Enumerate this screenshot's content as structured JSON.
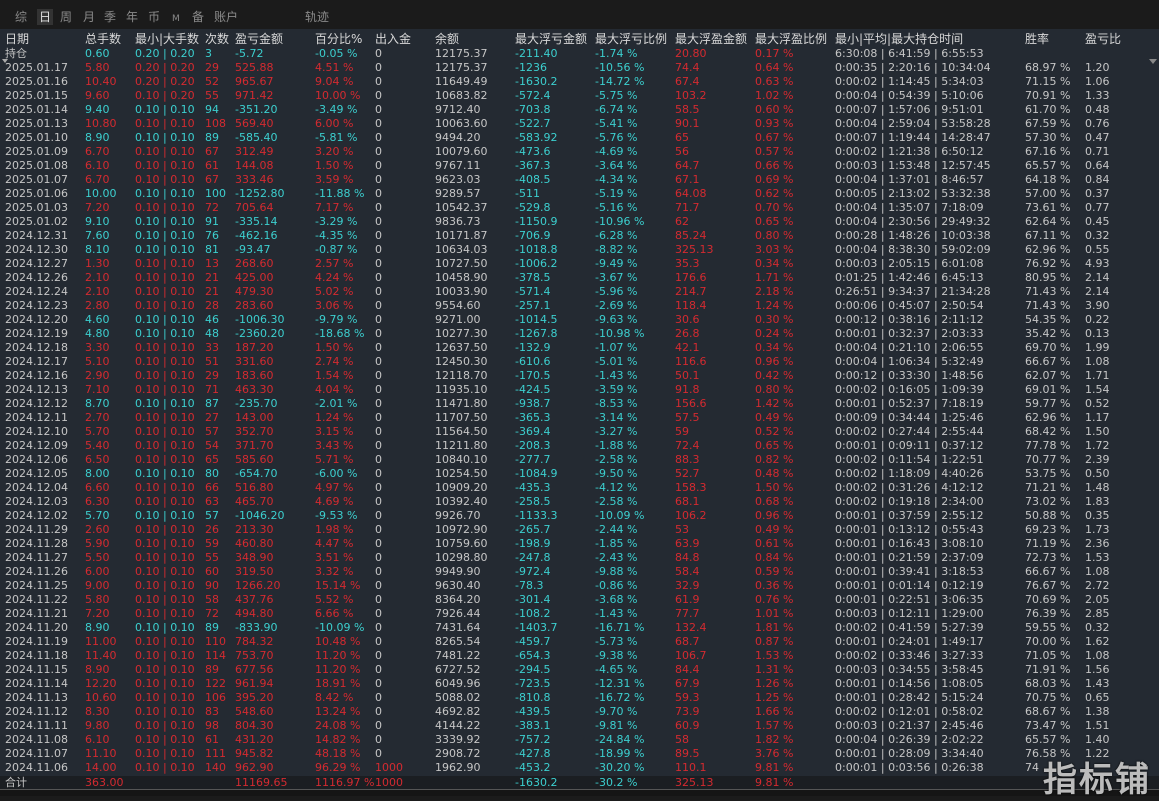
{
  "tabs": [
    {
      "label": "综",
      "active": false
    },
    {
      "label": "日",
      "active": true
    },
    {
      "label": "周",
      "active": false
    },
    {
      "label": "月",
      "active": false
    },
    {
      "label": "季",
      "active": false
    },
    {
      "label": "年",
      "active": false
    },
    {
      "label": "币",
      "active": false
    },
    {
      "label": "M",
      "active": false
    },
    {
      "label": "备",
      "active": false
    },
    {
      "label": "账户",
      "active": false
    },
    {
      "label": "轨迹",
      "active": false
    }
  ],
  "colors": {
    "positive": "#d42a30",
    "negative": "#3ccfcf",
    "neutral": "#c6c6c6",
    "background": "#242a32"
  },
  "columns": [
    "日期",
    "总手数",
    "最小|大手数",
    "次数",
    "盈亏金额",
    "百分比%",
    "出入金",
    "余额",
    "最大浮亏金额",
    "最大浮亏比例",
    "最大浮盈金额",
    "最大浮盈比例",
    "最小|平均|最大持仓时间",
    "胜率",
    "盈亏比"
  ],
  "position_row": [
    "持仓",
    "0.60",
    "0.20 | 0.20",
    "3",
    "-5.72",
    "-0.05 %",
    "0",
    "12175.37",
    "-211.40",
    "-1.74 %",
    "20.80",
    "0.17 %",
    "6:30:08 | 6:41:59 | 6:55:53",
    "",
    ""
  ],
  "rows": [
    [
      "2025.01.17",
      "5.80",
      "0.20 | 0.20",
      "29",
      "525.88",
      "4.51 %",
      "0",
      "12175.37",
      "-1236",
      "-10.56 %",
      "74.4",
      "0.64 %",
      "0:00:35 | 2:20:16 | 10:34:04",
      "68.97 %",
      "1.20"
    ],
    [
      "2025.01.16",
      "10.40",
      "0.20 | 0.20",
      "52",
      "965.67",
      "9.04 %",
      "0",
      "11649.49",
      "-1630.2",
      "-14.72 %",
      "67.4",
      "0.63 %",
      "0:00:02 | 1:14:45 | 5:34:03",
      "71.15 %",
      "1.06"
    ],
    [
      "2025.01.15",
      "9.60",
      "0.10 | 0.20",
      "55",
      "971.42",
      "10.00 %",
      "0",
      "10683.82",
      "-572.4",
      "-5.75 %",
      "103.2",
      "1.02 %",
      "0:00:04 | 0:54:39 | 5:10:06",
      "70.91 %",
      "1.33"
    ],
    [
      "2025.01.14",
      "9.40",
      "0.10 | 0.10",
      "94",
      "-351.20",
      "-3.49 %",
      "0",
      "9712.40",
      "-703.8",
      "-6.74 %",
      "58.5",
      "0.60 %",
      "0:00:07 | 1:57:06 | 9:51:01",
      "61.70 %",
      "0.48"
    ],
    [
      "2025.01.13",
      "10.80",
      "0.10 | 0.10",
      "108",
      "569.40",
      "6.00 %",
      "0",
      "10063.60",
      "-522.7",
      "-5.41 %",
      "90.1",
      "0.93 %",
      "0:00:04 | 2:59:04 | 53:58:28",
      "67.59 %",
      "0.76"
    ],
    [
      "2025.01.10",
      "8.90",
      "0.10 | 0.10",
      "89",
      "-585.40",
      "-5.81 %",
      "0",
      "9494.20",
      "-583.92",
      "-5.76 %",
      "65",
      "0.67 %",
      "0:00:07 | 1:19:44 | 14:28:47",
      "57.30 %",
      "0.47"
    ],
    [
      "2025.01.09",
      "6.70",
      "0.10 | 0.10",
      "67",
      "312.49",
      "3.20 %",
      "0",
      "10079.60",
      "-473.6",
      "-4.69 %",
      "56",
      "0.57 %",
      "0:00:02 | 1:21:38 | 6:50:12",
      "67.16 %",
      "0.71"
    ],
    [
      "2025.01.08",
      "6.10",
      "0.10 | 0.10",
      "61",
      "144.08",
      "1.50 %",
      "0",
      "9767.11",
      "-367.3",
      "-3.64 %",
      "64.7",
      "0.66 %",
      "0:00:03 | 1:53:48 | 12:57:45",
      "65.57 %",
      "0.64"
    ],
    [
      "2025.01.07",
      "6.70",
      "0.10 | 0.10",
      "67",
      "333.46",
      "3.59 %",
      "0",
      "9623.03",
      "-408.5",
      "-4.34 %",
      "67.1",
      "0.69 %",
      "0:00:04 | 1:37:01 | 8:46:57",
      "64.18 %",
      "0.84"
    ],
    [
      "2025.01.06",
      "10.00",
      "0.10 | 0.10",
      "100",
      "-1252.80",
      "-11.88 %",
      "0",
      "9289.57",
      "-511",
      "-5.19 %",
      "64.08",
      "0.62 %",
      "0:00:05 | 2:13:02 | 53:32:38",
      "57.00 %",
      "0.37"
    ],
    [
      "2025.01.03",
      "7.20",
      "0.10 | 0.10",
      "72",
      "705.64",
      "7.17 %",
      "0",
      "10542.37",
      "-529.8",
      "-5.16 %",
      "71.7",
      "0.70 %",
      "0:00:04 | 1:35:07 | 7:18:09",
      "73.61 %",
      "0.77"
    ],
    [
      "2025.01.02",
      "9.10",
      "0.10 | 0.10",
      "91",
      "-335.14",
      "-3.29 %",
      "0",
      "9836.73",
      "-1150.9",
      "-10.96 %",
      "62",
      "0.65 %",
      "0:00:04 | 2:30:56 | 29:49:32",
      "62.64 %",
      "0.45"
    ],
    [
      "2024.12.31",
      "7.60",
      "0.10 | 0.10",
      "76",
      "-462.16",
      "-4.35 %",
      "0",
      "10171.87",
      "-706.9",
      "-6.28 %",
      "85.24",
      "0.80 %",
      "0:00:28 | 1:48:26 | 10:03:38",
      "67.11 %",
      "0.32"
    ],
    [
      "2024.12.30",
      "8.10",
      "0.10 | 0.10",
      "81",
      "-93.47",
      "-0.87 %",
      "0",
      "10634.03",
      "-1018.8",
      "-8.82 %",
      "325.13",
      "3.03 %",
      "0:00:04 | 8:38:30 | 59:02:09",
      "62.96 %",
      "0.55"
    ],
    [
      "2024.12.27",
      "1.30",
      "0.10 | 0.10",
      "13",
      "268.60",
      "2.57 %",
      "0",
      "10727.50",
      "-1006.2",
      "-9.49 %",
      "35.3",
      "0.34 %",
      "0:00:03 | 2:05:15 | 6:01:08",
      "76.92 %",
      "4.93"
    ],
    [
      "2024.12.26",
      "2.10",
      "0.10 | 0.10",
      "21",
      "425.00",
      "4.24 %",
      "0",
      "10458.90",
      "-378.5",
      "-3.67 %",
      "176.6",
      "1.71 %",
      "0:01:25 | 1:42:46 | 6:45:13",
      "80.95 %",
      "2.14"
    ],
    [
      "2024.12.24",
      "2.10",
      "0.10 | 0.10",
      "21",
      "479.30",
      "5.02 %",
      "0",
      "10033.90",
      "-571.4",
      "-5.96 %",
      "214.7",
      "2.18 %",
      "0:26:51 | 9:34:37 | 21:34:28",
      "71.43 %",
      "2.14"
    ],
    [
      "2024.12.23",
      "2.80",
      "0.10 | 0.10",
      "28",
      "283.60",
      "3.06 %",
      "0",
      "9554.60",
      "-257.1",
      "-2.69 %",
      "118.4",
      "1.24 %",
      "0:00:06 | 0:45:07 | 2:50:54",
      "71.43 %",
      "3.90"
    ],
    [
      "2024.12.20",
      "4.60",
      "0.10 | 0.10",
      "46",
      "-1006.30",
      "-9.79 %",
      "0",
      "9271.00",
      "-1014.5",
      "-9.63 %",
      "30.6",
      "0.30 %",
      "0:00:12 | 0:38:16 | 2:11:12",
      "54.35 %",
      "0.22"
    ],
    [
      "2024.12.19",
      "4.80",
      "0.10 | 0.10",
      "48",
      "-2360.20",
      "-18.68 %",
      "0",
      "10277.30",
      "-1267.8",
      "-10.98 %",
      "26.8",
      "0.24 %",
      "0:00:01 | 0:32:37 | 2:03:33",
      "35.42 %",
      "0.13"
    ],
    [
      "2024.12.18",
      "3.30",
      "0.10 | 0.10",
      "33",
      "187.20",
      "1.50 %",
      "0",
      "12637.50",
      "-132.9",
      "-1.07 %",
      "42.1",
      "0.34 %",
      "0:00:04 | 0:21:10 | 2:06:55",
      "69.70 %",
      "1.99"
    ],
    [
      "2024.12.17",
      "5.10",
      "0.10 | 0.10",
      "51",
      "331.60",
      "2.74 %",
      "0",
      "12450.30",
      "-610.6",
      "-5.01 %",
      "116.6",
      "0.96 %",
      "0:00:04 | 1:06:34 | 5:32:49",
      "66.67 %",
      "1.08"
    ],
    [
      "2024.12.16",
      "2.90",
      "0.10 | 0.10",
      "29",
      "183.60",
      "1.54 %",
      "0",
      "12118.70",
      "-170.5",
      "-1.43 %",
      "50.1",
      "0.42 %",
      "0:00:12 | 0:33:30 | 1:48:56",
      "62.07 %",
      "1.71"
    ],
    [
      "2024.12.13",
      "7.10",
      "0.10 | 0.10",
      "71",
      "463.30",
      "4.04 %",
      "0",
      "11935.10",
      "-424.5",
      "-3.59 %",
      "91.8",
      "0.80 %",
      "0:00:02 | 0:16:05 | 1:09:39",
      "69.01 %",
      "1.54"
    ],
    [
      "2024.12.12",
      "8.70",
      "0.10 | 0.10",
      "87",
      "-235.70",
      "-2.01 %",
      "0",
      "11471.80",
      "-938.7",
      "-8.53 %",
      "156.6",
      "1.42 %",
      "0:00:01 | 0:52:37 | 7:18:19",
      "59.77 %",
      "0.52"
    ],
    [
      "2024.12.11",
      "2.70",
      "0.10 | 0.10",
      "27",
      "143.00",
      "1.24 %",
      "0",
      "11707.50",
      "-365.3",
      "-3.14 %",
      "57.5",
      "0.49 %",
      "0:00:09 | 0:34:44 | 1:25:46",
      "62.96 %",
      "1.17"
    ],
    [
      "2024.12.10",
      "5.70",
      "0.10 | 0.10",
      "57",
      "352.70",
      "3.15 %",
      "0",
      "11564.50",
      "-369.4",
      "-3.27 %",
      "59",
      "0.52 %",
      "0:00:02 | 0:27:44 | 2:55:44",
      "68.42 %",
      "1.50"
    ],
    [
      "2024.12.09",
      "5.40",
      "0.10 | 0.10",
      "54",
      "371.70",
      "3.43 %",
      "0",
      "11211.80",
      "-208.3",
      "-1.88 %",
      "72.4",
      "0.65 %",
      "0:00:01 | 0:09:11 | 0:37:12",
      "77.78 %",
      "1.72"
    ],
    [
      "2024.12.06",
      "6.50",
      "0.10 | 0.10",
      "65",
      "585.60",
      "5.71 %",
      "0",
      "10840.10",
      "-277.7",
      "-2.58 %",
      "88.3",
      "0.82 %",
      "0:00:02 | 0:11:54 | 1:22:51",
      "70.77 %",
      "2.39"
    ],
    [
      "2024.12.05",
      "8.00",
      "0.10 | 0.10",
      "80",
      "-654.70",
      "-6.00 %",
      "0",
      "10254.50",
      "-1084.9",
      "-9.50 %",
      "52.7",
      "0.48 %",
      "0:00:02 | 1:18:09 | 4:40:26",
      "53.75 %",
      "0.50"
    ],
    [
      "2024.12.04",
      "6.60",
      "0.10 | 0.10",
      "66",
      "516.80",
      "4.97 %",
      "0",
      "10909.20",
      "-435.3",
      "-4.12 %",
      "158.3",
      "1.50 %",
      "0:00:02 | 0:31:26 | 4:12:12",
      "71.21 %",
      "1.48"
    ],
    [
      "2024.12.03",
      "6.30",
      "0.10 | 0.10",
      "63",
      "465.70",
      "4.69 %",
      "0",
      "10392.40",
      "-258.5",
      "-2.58 %",
      "68.1",
      "0.68 %",
      "0:00:02 | 0:19:18 | 2:34:00",
      "73.02 %",
      "1.83"
    ],
    [
      "2024.12.02",
      "5.70",
      "0.10 | 0.10",
      "57",
      "-1046.20",
      "-9.53 %",
      "0",
      "9926.70",
      "-1133.3",
      "-10.09 %",
      "106.2",
      "0.96 %",
      "0:00:01 | 0:37:59 | 2:55:12",
      "50.88 %",
      "0.35"
    ],
    [
      "2024.11.29",
      "2.60",
      "0.10 | 0.10",
      "26",
      "213.30",
      "1.98 %",
      "0",
      "10972.90",
      "-265.7",
      "-2.44 %",
      "53",
      "0.49 %",
      "0:00:01 | 0:13:12 | 0:55:43",
      "69.23 %",
      "1.73"
    ],
    [
      "2024.11.28",
      "5.90",
      "0.10 | 0.10",
      "59",
      "460.80",
      "4.47 %",
      "0",
      "10759.60",
      "-198.9",
      "-1.85 %",
      "63.9",
      "0.61 %",
      "0:00:01 | 0:16:43 | 3:08:10",
      "71.19 %",
      "2.36"
    ],
    [
      "2024.11.27",
      "5.50",
      "0.10 | 0.10",
      "55",
      "348.90",
      "3.51 %",
      "0",
      "10298.80",
      "-247.8",
      "-2.43 %",
      "84.8",
      "0.84 %",
      "0:00:01 | 0:21:59 | 2:37:09",
      "72.73 %",
      "1.53"
    ],
    [
      "2024.11.26",
      "6.00",
      "0.10 | 0.10",
      "60",
      "319.50",
      "3.32 %",
      "0",
      "9949.90",
      "-972.4",
      "-9.88 %",
      "58.4",
      "0.59 %",
      "0:00:01 | 0:39:41 | 3:18:53",
      "66.67 %",
      "1.08"
    ],
    [
      "2024.11.25",
      "9.00",
      "0.10 | 0.10",
      "90",
      "1266.20",
      "15.14 %",
      "0",
      "9630.40",
      "-78.3",
      "-0.86 %",
      "32.9",
      "0.36 %",
      "0:00:01 | 0:01:14 | 0:12:19",
      "76.67 %",
      "2.72"
    ],
    [
      "2024.11.22",
      "5.80",
      "0.10 | 0.10",
      "58",
      "437.76",
      "5.52 %",
      "0",
      "8364.20",
      "-301.4",
      "-3.68 %",
      "61.9",
      "0.76 %",
      "0:00:01 | 0:22:51 | 3:06:35",
      "70.69 %",
      "2.05"
    ],
    [
      "2024.11.21",
      "7.20",
      "0.10 | 0.10",
      "72",
      "494.80",
      "6.66 %",
      "0",
      "7926.44",
      "-108.2",
      "-1.43 %",
      "77.7",
      "1.01 %",
      "0:00:03 | 0:12:11 | 1:29:00",
      "76.39 %",
      "2.85"
    ],
    [
      "2024.11.20",
      "8.90",
      "0.10 | 0.10",
      "89",
      "-833.90",
      "-10.09 %",
      "0",
      "7431.64",
      "-1403.7",
      "-16.71 %",
      "132.4",
      "1.81 %",
      "0:00:02 | 0:41:59 | 5:27:39",
      "59.55 %",
      "0.32"
    ],
    [
      "2024.11.19",
      "11.00",
      "0.10 | 0.10",
      "110",
      "784.32",
      "10.48 %",
      "0",
      "8265.54",
      "-459.7",
      "-5.73 %",
      "68.7",
      "0.87 %",
      "0:00:01 | 0:24:01 | 1:49:17",
      "70.00 %",
      "1.62"
    ],
    [
      "2024.11.18",
      "11.40",
      "0.10 | 0.10",
      "114",
      "753.70",
      "11.20 %",
      "0",
      "7481.22",
      "-654.3",
      "-9.38 %",
      "106.7",
      "1.53 %",
      "0:00:02 | 0:33:46 | 3:27:33",
      "71.05 %",
      "1.08"
    ],
    [
      "2024.11.15",
      "8.90",
      "0.10 | 0.10",
      "89",
      "677.56",
      "11.20 %",
      "0",
      "6727.52",
      "-294.5",
      "-4.65 %",
      "84.4",
      "1.31 %",
      "0:00:03 | 0:34:55 | 3:58:45",
      "71.91 %",
      "1.56"
    ],
    [
      "2024.11.14",
      "12.20",
      "0.10 | 0.10",
      "122",
      "961.94",
      "18.91 %",
      "0",
      "6049.96",
      "-723.5",
      "-12.31 %",
      "67.9",
      "1.26 %",
      "0:00:01 | 0:14:56 | 1:08:05",
      "68.03 %",
      "1.43"
    ],
    [
      "2024.11.13",
      "10.60",
      "0.10 | 0.10",
      "106",
      "395.20",
      "8.42 %",
      "0",
      "5088.02",
      "-810.8",
      "-16.72 %",
      "59.3",
      "1.25 %",
      "0:00:01 | 0:28:42 | 5:15:24",
      "70.75 %",
      "0.65"
    ],
    [
      "2024.11.12",
      "8.30",
      "0.10 | 0.10",
      "83",
      "548.60",
      "13.24 %",
      "0",
      "4692.82",
      "-439.5",
      "-9.70 %",
      "73.9",
      "1.66 %",
      "0:00:02 | 0:12:01 | 0:58:02",
      "68.67 %",
      "1.38"
    ],
    [
      "2024.11.11",
      "9.80",
      "0.10 | 0.10",
      "98",
      "804.30",
      "24.08 %",
      "0",
      "4144.22",
      "-383.1",
      "-9.81 %",
      "60.9",
      "1.57 %",
      "0:00:03 | 0:21:37 | 2:45:46",
      "73.47 %",
      "1.51"
    ],
    [
      "2024.11.08",
      "6.10",
      "0.10 | 0.10",
      "61",
      "431.20",
      "14.82 %",
      "0",
      "3339.92",
      "-757.2",
      "-24.84 %",
      "58",
      "1.82 %",
      "0:00:04 | 0:26:39 | 2:02:22",
      "65.57 %",
      "1.40"
    ],
    [
      "2024.11.07",
      "11.10",
      "0.10 | 0.10",
      "111",
      "945.82",
      "48.18 %",
      "0",
      "2908.72",
      "-427.8",
      "-18.99 %",
      "89.5",
      "3.76 %",
      "0:00:01 | 0:28:09 | 3:34:40",
      "76.58 %",
      "1.22"
    ],
    [
      "2024.11.06",
      "14.00",
      "0.10 | 0.10",
      "140",
      "962.90",
      "96.29 %",
      "1000",
      "1962.90",
      "-453.2",
      "-30.20 %",
      "110.1",
      "9.81 %",
      "0:00:01 | 0:03:56 | 0:26:38",
      "74",
      ""
    ]
  ],
  "total_row": [
    "合计",
    "363.00",
    "",
    "",
    "11169.65",
    "1116.97 %",
    "1000",
    "",
    "-1630.2",
    "-30.2 %",
    "325.13",
    "9.81 %",
    "",
    "",
    ""
  ],
  "watermark": "指标铺"
}
